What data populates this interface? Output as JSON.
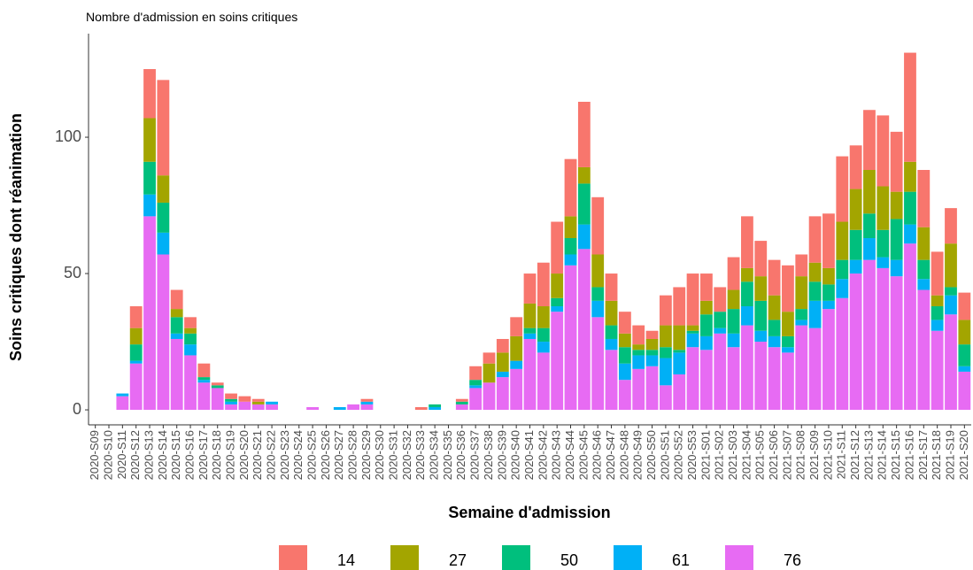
{
  "chart_data": {
    "type": "bar",
    "stacked": true,
    "title": "Nombre d'admission en soins critiques",
    "x_label": "Semaine d'admission",
    "y_label": "Soins critiques dont réanimation",
    "categories": [
      "2020-S09",
      "2020-S10",
      "2020-S11",
      "2020-S12",
      "2020-S13",
      "2020-S14",
      "2020-S15",
      "2020-S16",
      "2020-S17",
      "2020-S18",
      "2020-S19",
      "2020-S20",
      "2020-S21",
      "2020-S22",
      "2020-S23",
      "2020-S24",
      "2020-S25",
      "2020-S26",
      "2020-S27",
      "2020-S28",
      "2020-S29",
      "2020-S30",
      "2020-S31",
      "2020-S32",
      "2020-S33",
      "2020-S34",
      "2020-S35",
      "2020-S36",
      "2020-S37",
      "2020-S38",
      "2020-S39",
      "2020-S40",
      "2020-S41",
      "2020-S42",
      "2020-S43",
      "2020-S44",
      "2020-S45",
      "2020-S46",
      "2020-S47",
      "2020-S48",
      "2020-S49",
      "2020-S50",
      "2020-S51",
      "2020-S52",
      "2020-S53",
      "2021-S01",
      "2021-S02",
      "2021-S03",
      "2021-S04",
      "2021-S05",
      "2021-S06",
      "2021-S07",
      "2021-S08",
      "2021-S09",
      "2021-S10",
      "2021-S11",
      "2021-S12",
      "2021-S13",
      "2021-S14",
      "2021-S15",
      "2021-S16",
      "2021-S17",
      "2021-S18",
      "2021-S19",
      "2021-S20"
    ],
    "series": [
      {
        "name": "14",
        "color": "#F8766D",
        "values": [
          0,
          0,
          0,
          8,
          18,
          35,
          7,
          4,
          5,
          1,
          2,
          2,
          1,
          0,
          0,
          0,
          0,
          0,
          0,
          0,
          1,
          0,
          0,
          0,
          1,
          0,
          0,
          1,
          5,
          4,
          5,
          7,
          11,
          16,
          19,
          21,
          24,
          21,
          10,
          8,
          7,
          3,
          11,
          14,
          19,
          10,
          9,
          12,
          19,
          13,
          13,
          17,
          8,
          17,
          20,
          24,
          16,
          22,
          26,
          22,
          40,
          21,
          16,
          13,
          10
        ]
      },
      {
        "name": "27",
        "color": "#A3A500",
        "values": [
          0,
          0,
          0,
          6,
          16,
          10,
          3,
          2,
          0,
          0,
          0,
          0,
          1,
          0,
          0,
          0,
          0,
          0,
          0,
          0,
          0,
          0,
          0,
          0,
          0,
          0,
          0,
          0,
          0,
          7,
          7,
          9,
          9,
          8,
          9,
          8,
          6,
          12,
          9,
          5,
          2,
          4,
          8,
          9,
          2,
          5,
          0,
          7,
          5,
          9,
          9,
          9,
          12,
          7,
          6,
          14,
          15,
          16,
          16,
          10,
          11,
          12,
          4,
          16,
          9
        ]
      },
      {
        "name": "50",
        "color": "#00BF7D",
        "values": [
          0,
          0,
          0,
          6,
          12,
          11,
          6,
          4,
          1,
          1,
          1,
          0,
          0,
          0,
          0,
          0,
          0,
          0,
          0,
          0,
          0,
          0,
          0,
          0,
          0,
          1,
          0,
          1,
          2,
          0,
          0,
          0,
          2,
          5,
          3,
          6,
          15,
          5,
          5,
          6,
          2,
          2,
          4,
          1,
          1,
          8,
          6,
          9,
          9,
          11,
          6,
          4,
          4,
          7,
          6,
          7,
          11,
          9,
          10,
          15,
          12,
          7,
          5,
          3,
          8
        ]
      },
      {
        "name": "61",
        "color": "#00B0F6",
        "values": [
          0,
          0,
          1,
          1,
          8,
          8,
          2,
          4,
          1,
          0,
          1,
          0,
          0,
          1,
          0,
          0,
          0,
          0,
          1,
          0,
          1,
          0,
          0,
          0,
          0,
          1,
          0,
          0,
          1,
          0,
          2,
          3,
          2,
          4,
          2,
          4,
          9,
          6,
          4,
          6,
          5,
          4,
          10,
          8,
          5,
          5,
          2,
          5,
          7,
          4,
          4,
          2,
          2,
          10,
          3,
          7,
          5,
          8,
          4,
          6,
          7,
          4,
          4,
          7,
          2
        ]
      },
      {
        "name": "76",
        "color": "#E76BF3",
        "values": [
          0,
          0,
          5,
          17,
          71,
          57,
          26,
          20,
          10,
          8,
          2,
          3,
          2,
          2,
          0,
          0,
          1,
          0,
          0,
          2,
          2,
          0,
          0,
          0,
          0,
          0,
          0,
          2,
          8,
          10,
          12,
          15,
          26,
          21,
          36,
          53,
          59,
          34,
          22,
          11,
          15,
          16,
          9,
          13,
          23,
          22,
          28,
          23,
          31,
          25,
          23,
          21,
          31,
          30,
          37,
          41,
          50,
          55,
          52,
          49,
          61,
          44,
          29,
          35,
          14
        ]
      }
    ],
    "ylim": [
      -5.5,
      138
    ],
    "yticks": [
      0,
      50,
      100
    ],
    "grid": false,
    "legend": "bottom"
  }
}
